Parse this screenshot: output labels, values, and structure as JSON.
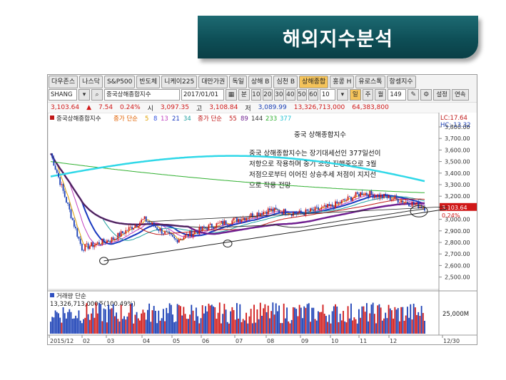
{
  "banner": {
    "title": "해외지수분석"
  },
  "tabs": [
    "다우존스",
    "나스닥",
    "S&P500",
    "반도체",
    "니케이225",
    "대만가권",
    "독일",
    "상해 B",
    "심천 B",
    "상해종합",
    "홍콩 H",
    "유로스톡",
    "항셍지수"
  ],
  "active_tab_index": 9,
  "controls": {
    "code": "SHANG",
    "name": "중국상해종합지수",
    "date": "2017/01/01",
    "unit_label": "분",
    "minute_options": [
      "10",
      "20",
      "30",
      "40",
      "50",
      "60"
    ],
    "period_value": "10",
    "period_buttons": [
      "일",
      "주",
      "월"
    ],
    "count": "149",
    "settings_label": "설정",
    "continuous_label": "연속"
  },
  "quote": {
    "price": "3,103.64",
    "arrow": "▲",
    "change": "7.54",
    "change_pct": "0.24%",
    "open_label": "시",
    "open": "3,097.35",
    "high_label": "고",
    "high": "3,108.84",
    "low_label": "저",
    "low": "3,089.99",
    "volume": "13,326,713,000",
    "amount": "64,383,800"
  },
  "legend": {
    "main_title": "중국상해종합지수",
    "ma_short_label": "종가 단순",
    "ma_short": [
      "5",
      "8",
      "13",
      "21",
      "34"
    ],
    "ma_long_label": "종가 단순",
    "ma_long": [
      "55",
      "89",
      "144",
      "233",
      "377"
    ],
    "lc": "LC:17.64",
    "hc": "HC:-13.32"
  },
  "annotation": {
    "title": "중국 상해종합지수",
    "lines": [
      "중국 상해종합지수는 장기대세선인 377일선이",
      "저항으로 작용하며 중기 조정 진행중으로 3월",
      "저점으로부터 이어진 상승추세 저점이 지지선",
      "으로 작용 전망"
    ]
  },
  "price_axis": [
    "3,800.00",
    "3,700.00",
    "3,600.00",
    "3,500.00",
    "3,400.00",
    "3,300.00",
    "3,200.00",
    "3,100.00",
    "3,000.00",
    "2,900.00",
    "2,800.00",
    "2,700.00",
    "2,600.00",
    "2,500.00"
  ],
  "price_tag": "3,103.64",
  "price_tag_pct": "0.24%",
  "volume_panel": {
    "title": "거래량 단순",
    "value": "13,326,713,000주(100.49%)",
    "axis_label": "25,000M"
  },
  "date_axis": [
    "2015/12",
    "02",
    "03",
    "04",
    "05",
    "06",
    "07",
    "08",
    "09",
    "10",
    "11",
    "12",
    "12/30"
  ],
  "colors": {
    "banner_bg": "#0e4f57",
    "up": "#d01818",
    "down": "#1a3fb5",
    "active_tab": "#f4c35a"
  },
  "chart_data": {
    "type": "line",
    "title": "중국상해종합지수",
    "x": [
      "2015/12",
      "02",
      "03",
      "04",
      "05",
      "06",
      "07",
      "08",
      "09",
      "10",
      "11",
      "12",
      "12/30"
    ],
    "series": [
      {
        "name": "중국상해종합지수",
        "values": [
          3570,
          2750,
          2830,
          3000,
          2820,
          2930,
          3000,
          3080,
          3050,
          3110,
          3230,
          3180,
          3104
        ]
      }
    ],
    "ylim": [
      2500,
      3850
    ]
  }
}
